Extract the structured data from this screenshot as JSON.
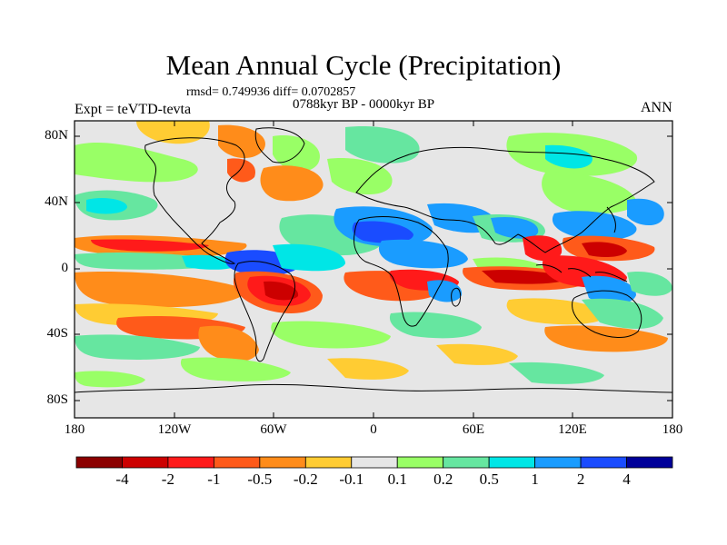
{
  "title": "Mean Annual Cycle (Precipitation)",
  "stats": "rmsd= 0.749936 diff= 0.0702857",
  "period": "0788kyr BP - 0000kyr BP",
  "experiment": "Expt = teVTD-tevta",
  "season": "ANN",
  "lat_labels": [
    "80N",
    "40N",
    "0",
    "40S",
    "80S"
  ],
  "lon_labels": [
    "180",
    "120W",
    "60W",
    "0",
    "60E",
    "120E",
    "180"
  ],
  "colorbar": {
    "labels": [
      "-4",
      "-2",
      "-1",
      "-0.5",
      "-0.2",
      "-0.1",
      "0.1",
      "0.2",
      "0.5",
      "1",
      "2",
      "4"
    ],
    "colors": [
      "#8b0000",
      "#cc0000",
      "#ff1a1a",
      "#ff5a1a",
      "#ff8c1a",
      "#ffcc33",
      "#e6e6e6",
      "#99ff66",
      "#66e6a0",
      "#00e6e6",
      "#1a9cff",
      "#1a4cff",
      "#000099"
    ]
  },
  "chart_data": {
    "type": "heatmap",
    "title": "Mean Annual Cycle (Precipitation)",
    "x_range": [
      -180,
      180
    ],
    "y_range": [
      -90,
      90
    ],
    "xticks": [
      "180",
      "120W",
      "60W",
      "0",
      "60E",
      "120E",
      "180"
    ],
    "yticks": [
      "80N",
      "40N",
      "0",
      "40S",
      "80S"
    ],
    "contour_levels": [
      -4,
      -2,
      -1,
      -0.5,
      -0.2,
      -0.1,
      0.1,
      0.2,
      0.5,
      1,
      2,
      4
    ]
  }
}
